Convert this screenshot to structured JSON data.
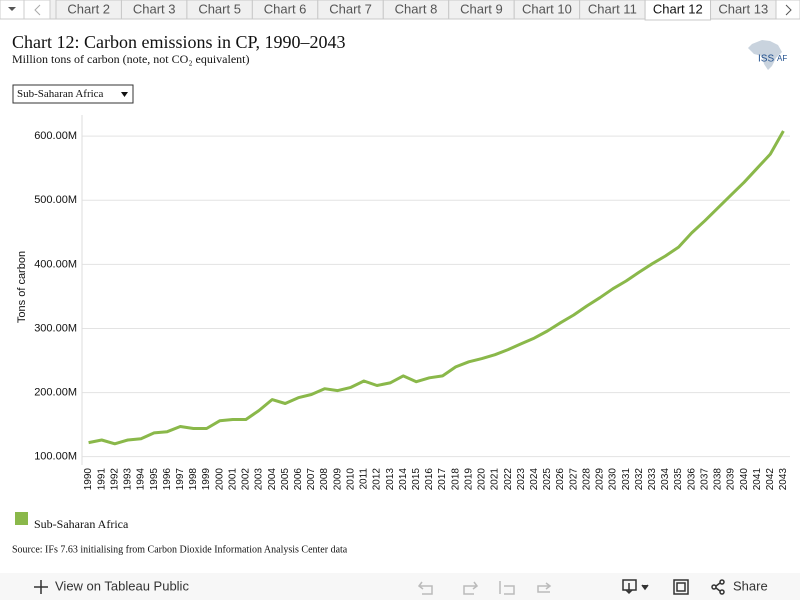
{
  "tabs": [
    "Chart 2",
    "Chart 3",
    "Chart 5",
    "Chart 6",
    "Chart 7",
    "Chart 8",
    "Chart 9",
    "Chart 10",
    "Chart 11",
    "Chart 12",
    "Chart 13"
  ],
  "active_tab": 9,
  "logo": {
    "left": "ISS",
    "right": "AF"
  },
  "dropdown": "Sub-Saharan Africa",
  "source": "Source: IFs 7.63 initialising from Carbon Dioxide Information Analysis Center data",
  "toolbar": {
    "view": "View on Tableau Public",
    "share": "Share"
  },
  "chart_data": {
    "type": "line",
    "title": "Chart 12: Carbon emissions in CP, 1990–2043",
    "subtitle": "Million tons of carbon (note, not CO₂ equivalent)",
    "y_label": "Tons of carbon",
    "categories": [
      "1990",
      "1991",
      "1992",
      "1993",
      "1994",
      "1995",
      "1996",
      "1997",
      "1998",
      "1999",
      "2000",
      "2001",
      "2002",
      "2003",
      "2004",
      "2005",
      "2006",
      "2007",
      "2008",
      "2009",
      "2010",
      "2011",
      "2012",
      "2013",
      "2014",
      "2015",
      "2016",
      "2017",
      "2018",
      "2019",
      "2020",
      "2021",
      "2022",
      "2023",
      "2024",
      "2025",
      "2026",
      "2027",
      "2028",
      "2029",
      "2030",
      "2031",
      "2032",
      "2033",
      "2034",
      "2035",
      "2036",
      "2037",
      "2038",
      "2039",
      "2040",
      "2041",
      "2042",
      "2043"
    ],
    "series": [
      {
        "name": "Sub-Saharan Africa",
        "color": "#8ab84a",
        "values": [
          122,
          126,
          120,
          126,
          128,
          137,
          139,
          147,
          144,
          144,
          156,
          158,
          158,
          172,
          189,
          183,
          192,
          197,
          206,
          203,
          208,
          218,
          211,
          215,
          226,
          217,
          223,
          226,
          240,
          248,
          253,
          259,
          267,
          276,
          285,
          296,
          309,
          321,
          335,
          348,
          362,
          374,
          388,
          401,
          413,
          427,
          449,
          468,
          488,
          508,
          528,
          550,
          572,
          608
        ]
      }
    ],
    "ylim": [
      87,
      633
    ],
    "yticks": [
      {
        "value": 100,
        "label": "100.00M"
      },
      {
        "value": 200,
        "label": "200.00M"
      },
      {
        "value": 300,
        "label": "300.00M"
      },
      {
        "value": 400,
        "label": "400.00M"
      },
      {
        "value": 500,
        "label": "500.00M"
      },
      {
        "value": 600,
        "label": "600.00M"
      }
    ],
    "grid": true
  }
}
